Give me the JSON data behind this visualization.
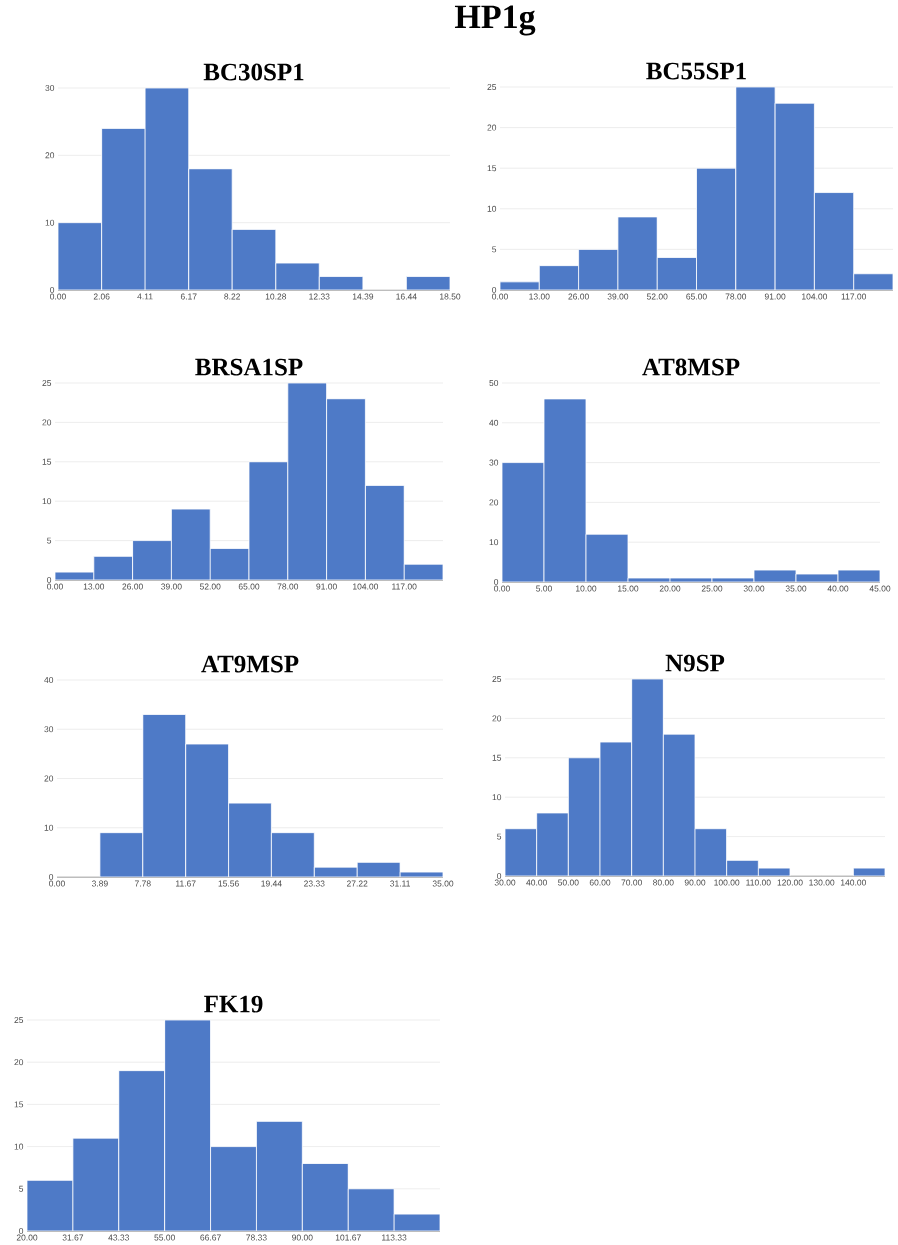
{
  "chart_data": [
    {
      "type": "histogram",
      "title": "HP1g",
      "subtitle": "BC30SP1",
      "color": "#4e7ac7",
      "grid": "y",
      "bins": [
        0,
        2.06,
        4.11,
        6.17,
        8.22,
        10.28,
        12.33,
        14.39,
        16.44,
        18.5
      ],
      "values": [
        10,
        24,
        30,
        18,
        9,
        4,
        2,
        0,
        2
      ],
      "xlim": [
        0,
        18.5
      ],
      "ylim": [
        0,
        30
      ],
      "yticks": [
        0,
        10,
        20,
        30
      ],
      "xticks": [
        {
          "value": 0,
          "label": "0.00"
        },
        {
          "value": 2.06,
          "label": "2.06"
        },
        {
          "value": 4.11,
          "label": "4.11"
        },
        {
          "value": 6.17,
          "label": "6.17"
        },
        {
          "value": 8.22,
          "label": "8.22"
        },
        {
          "value": 10.28,
          "label": "10.28"
        },
        {
          "value": 12.33,
          "label": "12.33"
        },
        {
          "value": 14.39,
          "label": "14.39"
        },
        {
          "value": 16.44,
          "label": "16.44"
        },
        {
          "value": 18.5,
          "label": "18.50"
        }
      ]
    },
    {
      "type": "histogram",
      "title": "BC55SP1",
      "color": "#4e7ac7",
      "grid": "y",
      "bins": [
        0,
        13,
        26,
        39,
        52,
        65,
        78,
        91,
        104,
        117,
        130
      ],
      "values": [
        1,
        3,
        5,
        9,
        4,
        15,
        25,
        23,
        12,
        2
      ],
      "xlim": [
        0,
        130
      ],
      "ylim": [
        0,
        25
      ],
      "yticks": [
        0,
        5,
        10,
        15,
        20,
        25
      ],
      "xticks": [
        {
          "value": 0,
          "label": "0.00"
        },
        {
          "value": 13,
          "label": "13.00"
        },
        {
          "value": 26,
          "label": "26.00"
        },
        {
          "value": 39,
          "label": "39.00"
        },
        {
          "value": 52,
          "label": "52.00"
        },
        {
          "value": 65,
          "label": "65.00"
        },
        {
          "value": 78,
          "label": "78.00"
        },
        {
          "value": 91,
          "label": "91.00"
        },
        {
          "value": 104,
          "label": "104.00"
        },
        {
          "value": 117,
          "label": "117.00"
        }
      ]
    },
    {
      "type": "histogram",
      "title": "BRSA1SP",
      "color": "#4e7ac7",
      "grid": "y",
      "bins": [
        0,
        13,
        26,
        39,
        52,
        65,
        78,
        91,
        104,
        117,
        130
      ],
      "values": [
        1,
        3,
        5,
        9,
        4,
        15,
        25,
        23,
        12,
        2
      ],
      "xlim": [
        0,
        130
      ],
      "ylim": [
        0,
        25
      ],
      "yticks": [
        0,
        5,
        10,
        15,
        20,
        25
      ],
      "xticks": [
        {
          "value": 0,
          "label": "0.00"
        },
        {
          "value": 13,
          "label": "13.00"
        },
        {
          "value": 26,
          "label": "26.00"
        },
        {
          "value": 39,
          "label": "39.00"
        },
        {
          "value": 52,
          "label": "52.00"
        },
        {
          "value": 65,
          "label": "65.00"
        },
        {
          "value": 78,
          "label": "78.00"
        },
        {
          "value": 91,
          "label": "91.00"
        },
        {
          "value": 104,
          "label": "104.00"
        },
        {
          "value": 117,
          "label": "117.00"
        }
      ]
    },
    {
      "type": "histogram",
      "title": "AT8MSP",
      "color": "#4e7ac7",
      "grid": "y",
      "bins": [
        0,
        5,
        10,
        15,
        20,
        25,
        30,
        35,
        40,
        45
      ],
      "values": [
        30,
        46,
        12,
        1,
        1,
        1,
        3,
        2,
        3
      ],
      "xlim": [
        0,
        45
      ],
      "ylim": [
        0,
        50
      ],
      "yticks": [
        0,
        10,
        20,
        30,
        40,
        50
      ],
      "xticks": [
        {
          "value": 0,
          "label": "0.00"
        },
        {
          "value": 5,
          "label": "5.00"
        },
        {
          "value": 10,
          "label": "10.00"
        },
        {
          "value": 15,
          "label": "15.00"
        },
        {
          "value": 20,
          "label": "20.00"
        },
        {
          "value": 25,
          "label": "25.00"
        },
        {
          "value": 30,
          "label": "30.00"
        },
        {
          "value": 35,
          "label": "35.00"
        },
        {
          "value": 40,
          "label": "40.00"
        },
        {
          "value": 45,
          "label": "45.00"
        }
      ]
    },
    {
      "type": "histogram",
      "title": "AT9MSP",
      "color": "#4e7ac7",
      "grid": "y",
      "bins": [
        0,
        3.89,
        7.78,
        11.67,
        15.56,
        19.44,
        23.33,
        27.22,
        31.11,
        35
      ],
      "values": [
        0,
        9,
        33,
        27,
        15,
        9,
        2,
        3,
        1
      ],
      "xlim": [
        0,
        35
      ],
      "ylim": [
        0,
        40
      ],
      "yticks": [
        0,
        10,
        20,
        30,
        40
      ],
      "xticks": [
        {
          "value": 0,
          "label": "0.00"
        },
        {
          "value": 3.89,
          "label": "3.89"
        },
        {
          "value": 7.78,
          "label": "7.78"
        },
        {
          "value": 11.67,
          "label": "11.67"
        },
        {
          "value": 15.56,
          "label": "15.56"
        },
        {
          "value": 19.44,
          "label": "19.44"
        },
        {
          "value": 23.33,
          "label": "23.33"
        },
        {
          "value": 27.22,
          "label": "27.22"
        },
        {
          "value": 31.11,
          "label": "31.11"
        },
        {
          "value": 35,
          "label": "35.00"
        }
      ]
    },
    {
      "type": "histogram",
      "title": "N9SP",
      "color": "#4e7ac7",
      "grid": "y",
      "bins": [
        30,
        40,
        50,
        60,
        70,
        80,
        90,
        100,
        110,
        120,
        130,
        140,
        150
      ],
      "values": [
        6,
        8,
        15,
        17,
        25,
        18,
        6,
        2,
        1,
        0,
        0,
        1
      ],
      "xlim": [
        30,
        150
      ],
      "ylim": [
        0,
        25
      ],
      "yticks": [
        0,
        5,
        10,
        15,
        20,
        25
      ],
      "xticks": [
        {
          "value": 30,
          "label": "30.00"
        },
        {
          "value": 40,
          "label": "40.00"
        },
        {
          "value": 50,
          "label": "50.00"
        },
        {
          "value": 60,
          "label": "60.00"
        },
        {
          "value": 70,
          "label": "70.00"
        },
        {
          "value": 80,
          "label": "80.00"
        },
        {
          "value": 90,
          "label": "90.00"
        },
        {
          "value": 100,
          "label": "100.00"
        },
        {
          "value": 110,
          "label": "110.00"
        },
        {
          "value": 120,
          "label": "120.00"
        },
        {
          "value": 130,
          "label": "130.00"
        },
        {
          "value": 140,
          "label": "140.00"
        }
      ]
    },
    {
      "type": "histogram",
      "title": "FK19",
      "color": "#4e7ac7",
      "grid": "y",
      "bins": [
        20,
        31.67,
        43.33,
        55,
        66.67,
        78.33,
        90,
        101.67,
        113.33,
        125
      ],
      "values": [
        6,
        11,
        19,
        25,
        10,
        13,
        8,
        5,
        2
      ],
      "xlim": [
        20,
        125
      ],
      "ylim": [
        0,
        25
      ],
      "yticks": [
        0,
        5,
        10,
        15,
        20,
        25
      ],
      "xticks": [
        {
          "value": 20,
          "label": "20.00"
        },
        {
          "value": 31.67,
          "label": "31.67"
        },
        {
          "value": 43.33,
          "label": "43.33"
        },
        {
          "value": 55,
          "label": "55.00"
        },
        {
          "value": 66.67,
          "label": "66.67"
        },
        {
          "value": 78.33,
          "label": "78.33"
        },
        {
          "value": 90,
          "label": "90.00"
        },
        {
          "value": 101.67,
          "label": "101.67"
        },
        {
          "value": 113.33,
          "label": "113.33"
        }
      ]
    }
  ]
}
